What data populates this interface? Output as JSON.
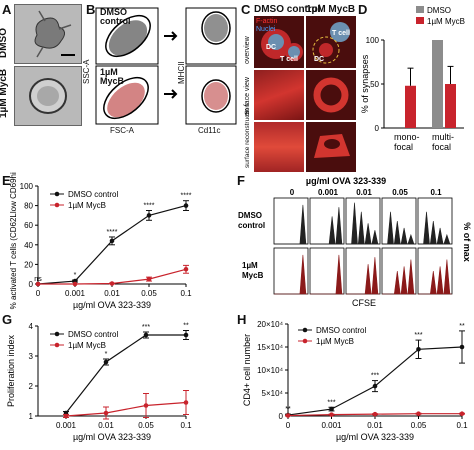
{
  "panels": {
    "A": "A",
    "B": "B",
    "C": "C",
    "D": "D",
    "E": "E",
    "F": "F",
    "G": "G",
    "H": "H"
  },
  "conditions": {
    "dmso": "DMSO",
    "mycb": "1µM MycB",
    "dmso_control": "DMSO control",
    "mycb_line1": "1µM",
    "mycb_line2": "MycB",
    "dmso_l1": "DMSO",
    "dmso_l2": "control"
  },
  "panelB": {
    "ssc": "SSC-A",
    "fsc": "FSC-A",
    "mhcii": "MHCII",
    "cd11c": "Cd11c"
  },
  "panelC": {
    "row1": "overview",
    "row2": "en face view",
    "row3": "surface reconstruction",
    "factin": "F-actin",
    "nuclei": "Nuclei",
    "dc": "DC",
    "tcell": "T cell"
  },
  "panelD": {
    "chart_data": {
      "type": "bar",
      "categories": [
        "mono-focal",
        "multi-focal"
      ],
      "series": [
        {
          "name": "DMSO",
          "values": [
            0,
            100
          ]
        },
        {
          "name": "1µM MycB",
          "values": [
            48,
            50
          ],
          "errors": [
            20,
            20
          ]
        }
      ],
      "ylabel": "% of synapses",
      "ylim": [
        0,
        100
      ],
      "yticks": [
        "0",
        "50",
        "100"
      ],
      "colors": [
        "#8c8c8c",
        "#c8232c"
      ]
    },
    "cat1a": "mono-",
    "cat1b": "focal",
    "cat2a": "multi-",
    "cat2b": "focal"
  },
  "panelE": {
    "chart_data": {
      "type": "line",
      "x": [
        "0",
        "0.001",
        "0.01",
        "0.05",
        "0.1"
      ],
      "series": [
        {
          "name": "DMSO control",
          "values": [
            0,
            3,
            44,
            70,
            80
          ],
          "errors": [
            0,
            1,
            4,
            5,
            5
          ]
        },
        {
          "name": "1µM MycB",
          "values": [
            0,
            0,
            0.5,
            5,
            15
          ],
          "errors": [
            0,
            0,
            0.5,
            2,
            4
          ]
        }
      ],
      "ylabel": "% activated T cells (CD62Llow CD69high)",
      "xlabel": "µg/ml OVA 323-339",
      "ylim": [
        0,
        100
      ],
      "yticks": [
        "0",
        "20",
        "40",
        "60",
        "80",
        "100"
      ],
      "annotations": [
        "ns",
        "*",
        "****",
        "****",
        "****"
      ]
    }
  },
  "panelF": {
    "title": "µg/ml OVA 323-339",
    "concs": [
      "0",
      "0.001",
      "0.01",
      "0.05",
      "0.1"
    ],
    "xlabel": "CFSE",
    "ylabel": "% of max"
  },
  "panelG": {
    "chart_data": {
      "type": "line",
      "x": [
        "0.001",
        "0.01",
        "0.05",
        "0.1"
      ],
      "series": [
        {
          "name": "DMSO control",
          "values": [
            1.1,
            2.8,
            3.7,
            3.7
          ],
          "errors": [
            0.05,
            0.1,
            0.1,
            0.15
          ]
        },
        {
          "name": "1µM MycB",
          "values": [
            1.0,
            1.1,
            1.35,
            1.45
          ],
          "errors": [
            0.05,
            0.2,
            0.4,
            0.4
          ]
        }
      ],
      "ylabel": "Proliferation index",
      "xlabel": "µg/ml OVA 323-339",
      "ylim": [
        1,
        4
      ],
      "yticks": [
        "1",
        "2",
        "3",
        "4"
      ],
      "annotations": [
        "*",
        "***",
        "**"
      ]
    }
  },
  "panelH": {
    "chart_data": {
      "type": "line",
      "x": [
        "0",
        "0.001",
        "0.01",
        "0.05",
        "0.1"
      ],
      "series": [
        {
          "name": "DMSO control",
          "values": [
            0.2,
            1.5,
            6.5,
            14.5,
            15
          ],
          "errors": [
            0.2,
            0.4,
            1.2,
            2.0,
            3.5
          ]
        },
        {
          "name": "1µM MycB",
          "values": [
            0.1,
            0.3,
            0.4,
            0.5,
            0.5
          ],
          "errors": [
            0.05,
            0.1,
            0.1,
            0.1,
            0.1
          ]
        }
      ],
      "ylabel": "CD4+ cell number",
      "xlabel": "µg/ml OVA 323-339",
      "ylim": [
        0,
        20
      ],
      "yticks": [
        "0",
        "5×10⁴",
        "10×10⁴",
        "15×10⁴",
        "20×10⁴"
      ],
      "annotations": [
        "**",
        "***",
        "***",
        "***",
        "**"
      ]
    }
  }
}
